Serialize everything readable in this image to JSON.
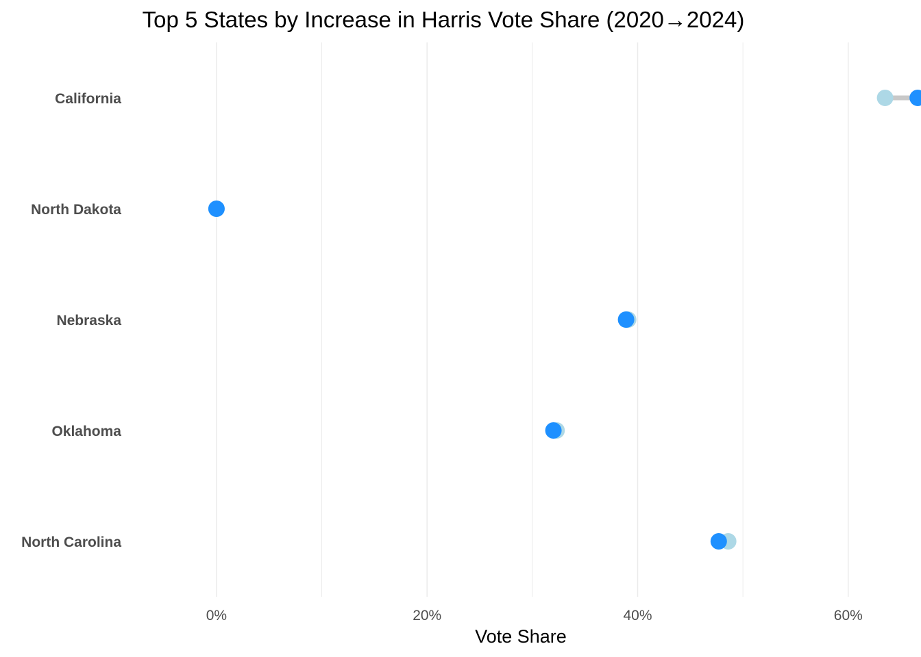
{
  "chart_data": {
    "type": "dumbbell",
    "title": "Top 5 States by Increase in Harris Vote Share (2020→2024)",
    "xlabel": "Vote Share",
    "ylabel": "",
    "xlim": [
      -0.08,
      0.66
    ],
    "x_ticks": [
      {
        "value": 0.0,
        "label": "0%"
      },
      {
        "value": 0.2,
        "label": "20%"
      },
      {
        "value": 0.4,
        "label": "40%"
      },
      {
        "value": 0.6,
        "label": "60%"
      }
    ],
    "x_minor_gridlines": [
      0.1,
      0.3,
      0.5
    ],
    "grid": true,
    "legend": "none",
    "categories": [
      "California",
      "North Dakota",
      "Nebraska",
      "Oklahoma",
      "North Carolina"
    ],
    "series": [
      {
        "values": [
          0.635,
          0.0,
          0.391,
          0.323,
          0.486
        ]
      },
      {
        "values": [
          0.666,
          0.0,
          0.389,
          0.32,
          0.477
        ]
      }
    ],
    "colors": {
      "start_point": "#add8e6",
      "end_point": "#1e90ff",
      "segment": "#c8c8c8",
      "grid": "#ebebeb"
    }
  }
}
